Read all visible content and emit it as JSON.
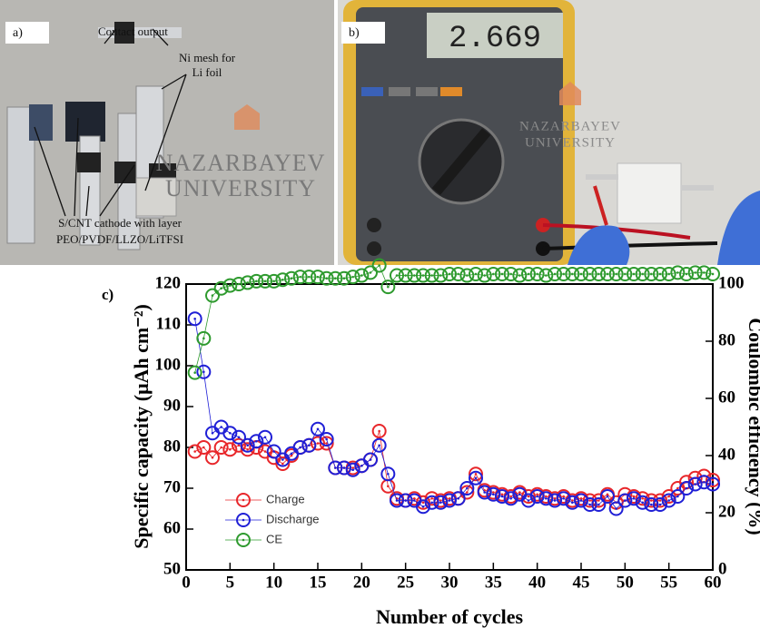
{
  "panels": {
    "a": {
      "label": "a)",
      "annotations": [
        "Contact output",
        "Ni mesh for",
        "Li foil",
        "S/CNT cathode with layer",
        "PEO/PVDF/LLZO/LiTFSI"
      ],
      "watermark": [
        "NAZARBAYEV",
        "UNIVERSITY"
      ]
    },
    "b": {
      "label": "b)",
      "meter_reading": "2.669",
      "watermark": [
        "NAZARBAYEV",
        "UNIVERSITY"
      ]
    }
  },
  "chart_data": {
    "type": "scatter",
    "label": "c)",
    "x_label": "Number of cycles",
    "y_label": "Specific capacity (μAh cm⁻²)",
    "y2_label": "Coulombic efficiency (%)",
    "x": [
      1,
      2,
      3,
      4,
      5,
      6,
      7,
      8,
      9,
      10,
      11,
      12,
      13,
      14,
      15,
      16,
      17,
      18,
      19,
      20,
      21,
      22,
      23,
      24,
      25,
      26,
      27,
      28,
      29,
      30,
      31,
      32,
      33,
      34,
      35,
      36,
      37,
      38,
      39,
      40,
      41,
      42,
      43,
      44,
      45,
      46,
      47,
      48,
      49,
      50,
      51,
      52,
      53,
      54,
      55,
      56,
      57,
      58,
      59,
      60
    ],
    "xlim": [
      0,
      60
    ],
    "xticks": [
      0,
      5,
      10,
      15,
      20,
      25,
      30,
      35,
      40,
      45,
      50,
      55,
      60
    ],
    "ylim": [
      50,
      120
    ],
    "yticks": [
      50,
      60,
      70,
      80,
      90,
      100,
      110,
      120
    ],
    "y2lim": [
      0,
      100
    ],
    "y2ticks": [
      0,
      20,
      40,
      60,
      80,
      100
    ],
    "series": [
      {
        "name": "Charge",
        "color": "#e8262a",
        "values": [
          79,
          80,
          77.5,
          80,
          79.5,
          80.5,
          79.5,
          80,
          79,
          77.5,
          76,
          78,
          80,
          80.5,
          81,
          81,
          75,
          75,
          75,
          75.5,
          77,
          84,
          70.5,
          67.5,
          67,
          67.5,
          66.5,
          67.5,
          67,
          67.5,
          67.5,
          69,
          73.5,
          69.5,
          69,
          68.5,
          68,
          69,
          68,
          68.5,
          68,
          67.5,
          68,
          67,
          67.5,
          67,
          67,
          68.5,
          66.5,
          68.5,
          68,
          67.5,
          67,
          67,
          68,
          70,
          71.5,
          72.5,
          73,
          72
        ]
      },
      {
        "name": "Discharge",
        "color": "#1f1fd6",
        "values": [
          111.5,
          98.5,
          83.5,
          85,
          83.5,
          82.5,
          80.5,
          81.5,
          82.5,
          79,
          77,
          78.5,
          80,
          80.5,
          84.5,
          82,
          75,
          75,
          74.5,
          75.5,
          77,
          80.5,
          73.5,
          67,
          67,
          67,
          65.5,
          66.5,
          66.5,
          67,
          67.5,
          70,
          72.5,
          69,
          68.5,
          68,
          67.5,
          68.5,
          67,
          68,
          67.5,
          67,
          67.5,
          66.5,
          67,
          66,
          66,
          68,
          65,
          67,
          67.5,
          66.5,
          66,
          66,
          67,
          68,
          70,
          71,
          71.5,
          71
        ]
      },
      {
        "name": "CE",
        "color": "#2e9a2e",
        "axis": "y2",
        "values": [
          69,
          81,
          96,
          98.5,
          99.5,
          100,
          100.5,
          101,
          101,
          101,
          101.5,
          102,
          102.5,
          102.5,
          102.5,
          102,
          102,
          102,
          102.5,
          103,
          104,
          106.5,
          99,
          103,
          103,
          103,
          103,
          103,
          103,
          103.5,
          103.5,
          103,
          103.5,
          103,
          103.5,
          103.5,
          103.5,
          103,
          103.5,
          103.5,
          103,
          103.5,
          103.5,
          103.5,
          103.5,
          103.5,
          103.5,
          103.5,
          103.5,
          103.5,
          103.5,
          103.5,
          103.5,
          103.5,
          103.5,
          104,
          103.5,
          104,
          104,
          103.5
        ]
      }
    ]
  }
}
